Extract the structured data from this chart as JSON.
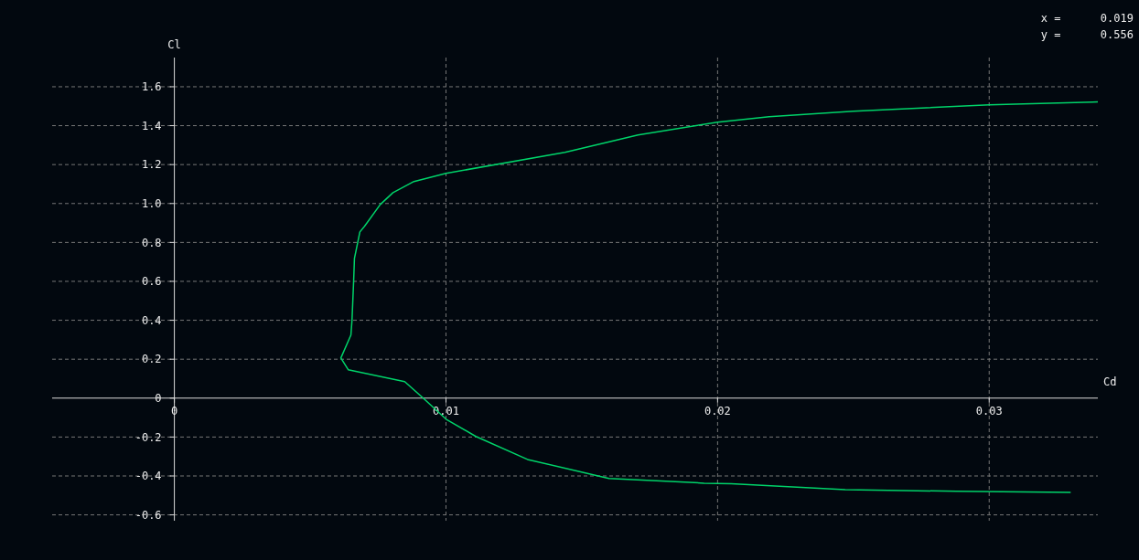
{
  "chart_data": {
    "type": "line",
    "xlabel": "Cd",
    "ylabel": "Cl",
    "annotations": [
      "x =      0.019",
      "y =      0.556"
    ],
    "xlim": [
      -0.0045,
      0.034
    ],
    "ylim": [
      -0.63,
      1.75
    ],
    "xticks": [
      0,
      0.01,
      0.02,
      0.03
    ],
    "yticks": [
      -0.6,
      -0.4,
      -0.2,
      0,
      0.2,
      0.4,
      0.6,
      0.8,
      {
        "value": 1,
        "label": "1.0"
      },
      1.2,
      1.4,
      1.6
    ],
    "grid": true,
    "line_style": "solid",
    "marker": "none",
    "series": [
      {
        "color": "#00d46a",
        "x": [
          0.033,
          0.0288,
          0.0247,
          0.0205,
          0.0195,
          0.016,
          0.013,
          0.0111,
          0.01,
          0.00916,
          0.00848,
          0.0064,
          0.00613,
          0.0065,
          0.00654,
          0.0066,
          0.00663,
          0.00683,
          0.007,
          0.00758,
          0.00805,
          0.00882,
          0.01,
          0.01438,
          0.01707,
          0.02,
          0.0219,
          0.025,
          0.03,
          0.0338,
          0.034
        ],
        "values": [
          -0.484,
          -0.479,
          -0.47,
          -0.44,
          -0.437,
          -0.413,
          -0.315,
          -0.197,
          -0.108,
          0,
          0.085,
          0.146,
          0.206,
          0.324,
          0.4,
          0.6,
          0.718,
          0.854,
          0.883,
          0.995,
          1.056,
          1.113,
          1.155,
          1.263,
          1.352,
          1.418,
          1.446,
          1.474,
          1.507,
          1.521,
          1.522
        ]
      }
    ]
  }
}
